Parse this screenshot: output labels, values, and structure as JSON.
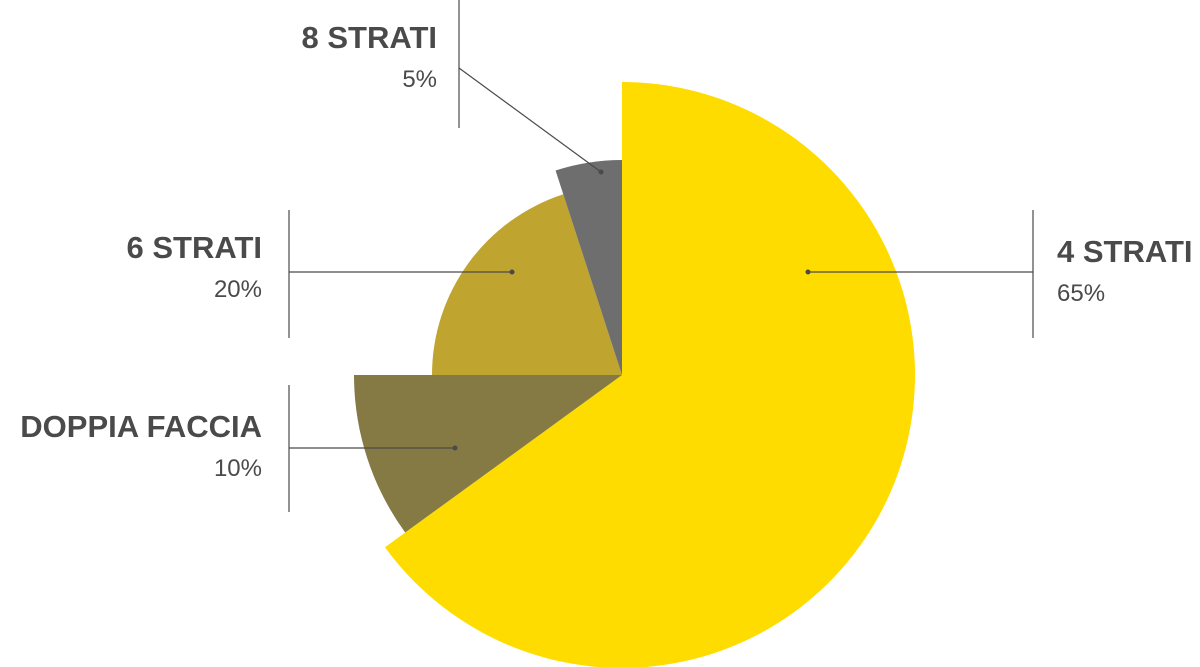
{
  "chart_data": {
    "type": "pie",
    "categories": [
      "4 STRATI",
      "DOPPIA FACCIA",
      "6 STRATI",
      "8 STRATI"
    ],
    "values": [
      65,
      10,
      20,
      5
    ],
    "value_labels": [
      "65%",
      "10%",
      "20%",
      "5%"
    ],
    "colors": [
      "#ffdc00",
      "#857a43",
      "#bfa430",
      "#6e6e6e"
    ]
  }
}
